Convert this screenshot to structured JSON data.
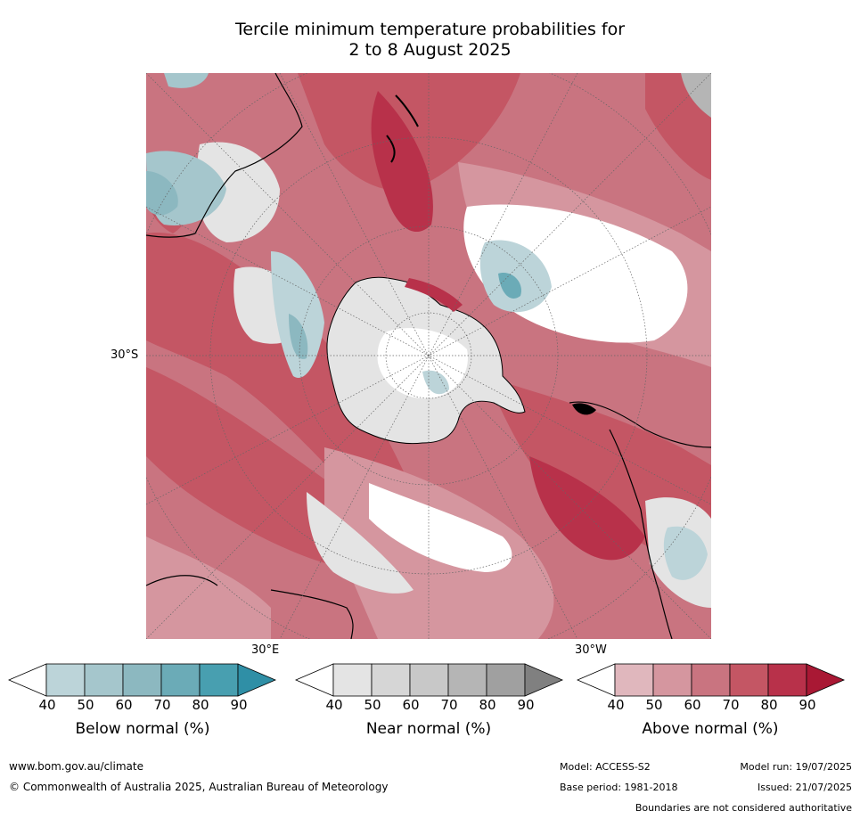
{
  "title_line1": "Tercile minimum temperature probabilities for",
  "title_line2": "2 to 8 August 2025",
  "map_labels": {
    "lat": "30°S",
    "lon_e": "30°E",
    "lon_w": "30°W"
  },
  "colorbars": [
    {
      "label": "Below normal (%)",
      "ticks": [
        "40",
        "50",
        "60",
        "70",
        "80",
        "90"
      ],
      "colors": [
        "#ffffff",
        "#bcd4d9",
        "#a5c6cc",
        "#8cb8c0",
        "#6babb7",
        "#489fb0",
        "#2f8fa6"
      ]
    },
    {
      "label": "Near normal (%)",
      "ticks": [
        "40",
        "50",
        "60",
        "70",
        "80",
        "90"
      ],
      "colors": [
        "#ffffff",
        "#e4e4e4",
        "#d6d6d6",
        "#c8c8c8",
        "#b5b5b5",
        "#a0a0a0",
        "#808080"
      ]
    },
    {
      "label": "Above normal (%)",
      "ticks": [
        "40",
        "50",
        "60",
        "70",
        "80",
        "90"
      ],
      "colors": [
        "#ffffff",
        "#e0b7bd",
        "#d5969f",
        "#c97480",
        "#c45664",
        "#b8314a",
        "#a91834"
      ]
    }
  ],
  "footer": {
    "url": "www.bom.gov.au/climate",
    "copyright": "© Commonwealth of Australia 2025, Australian Bureau of Meteorology",
    "model": "Model: ACCESS-S2",
    "model_run": "Model run: 19/07/2025",
    "base_period": "Base period: 1981-2018",
    "issued": "Issued: 21/07/2025",
    "disclaimer": "Boundaries are not considered authoritative"
  }
}
